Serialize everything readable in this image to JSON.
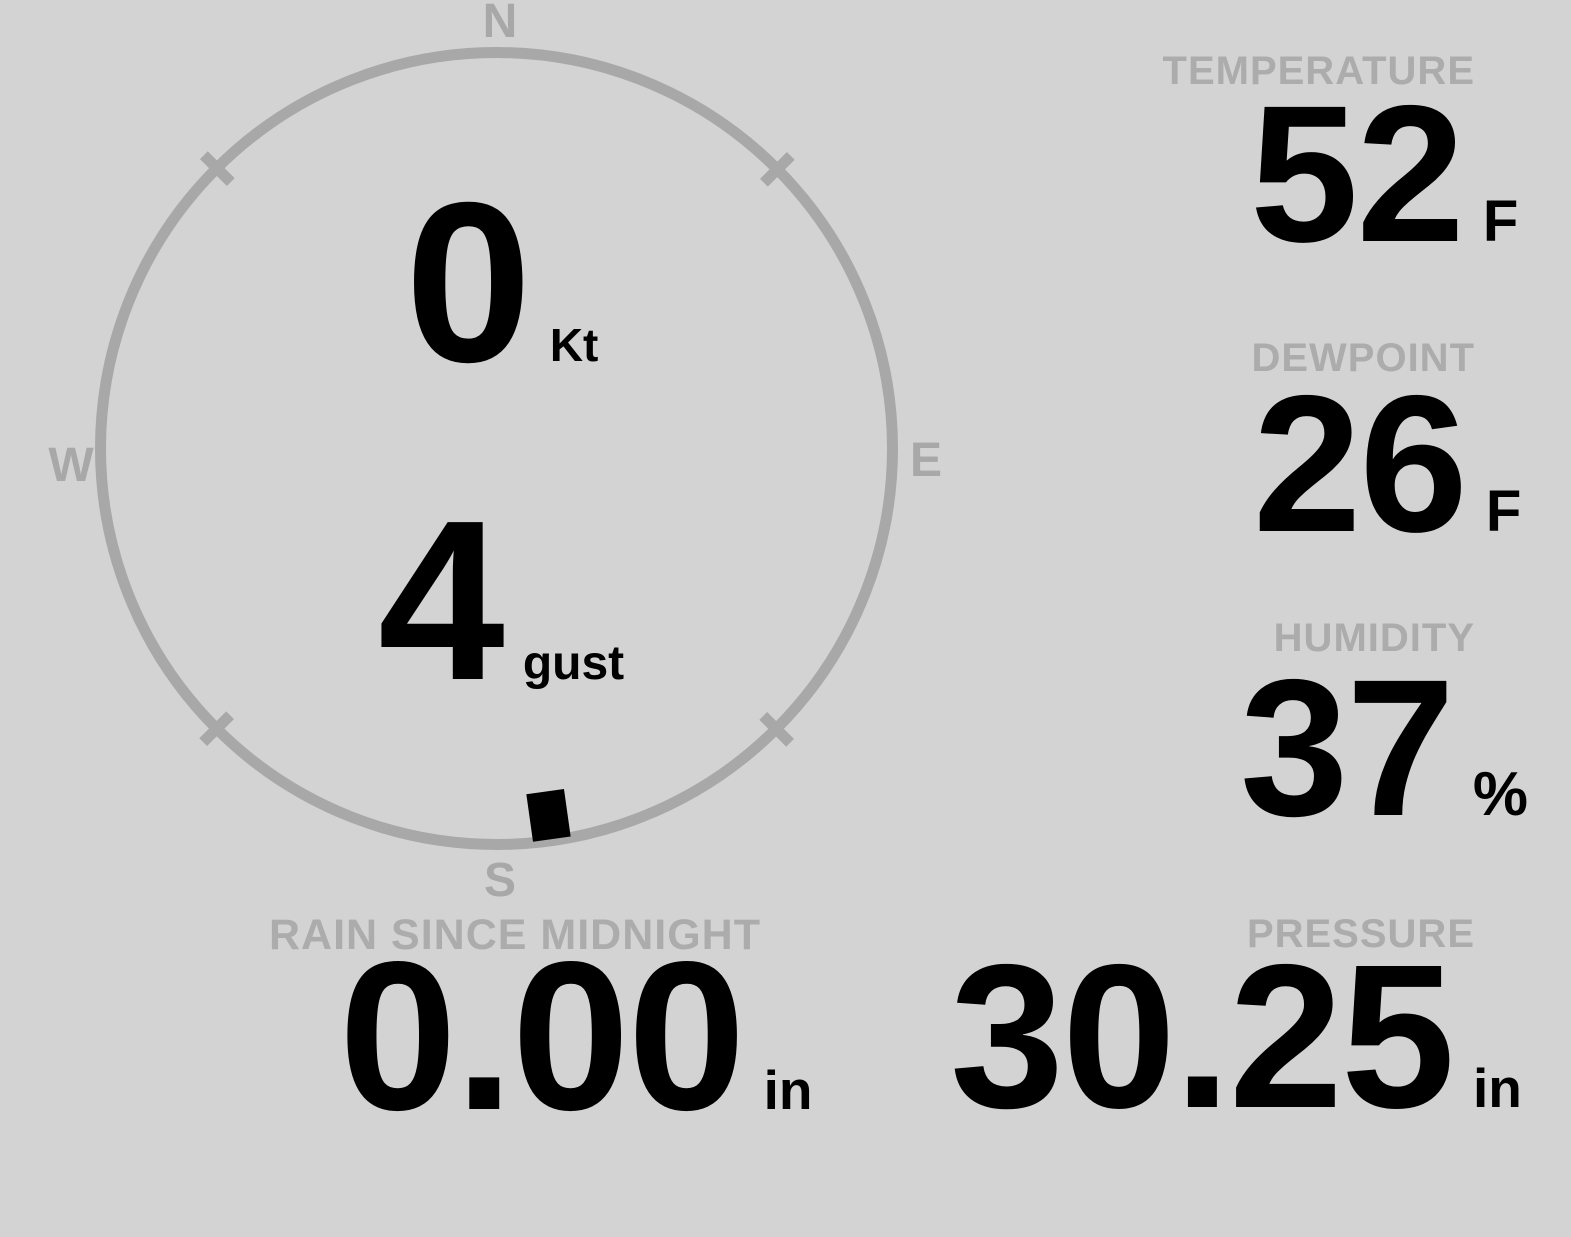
{
  "colors": {
    "background": "#d3d3d3",
    "ring_gray": "#a8a8a8",
    "label_gray": "#acacac",
    "value_black": "#000000",
    "direction_marker": "#000000"
  },
  "compass": {
    "cardinal_labels": {
      "north": "N",
      "east": "E",
      "south": "S",
      "west": "W"
    },
    "wind_speed": {
      "value": "0",
      "unit": "Kt"
    },
    "wind_gust": {
      "value": "4",
      "unit": "gust"
    },
    "wind_direction_deg": 172
  },
  "metrics": {
    "temperature": {
      "label": "TEMPERATURE",
      "value": "52",
      "unit": "F"
    },
    "dewpoint": {
      "label": "DEWPOINT",
      "value": "26",
      "unit": "F"
    },
    "humidity": {
      "label": "HUMIDITY",
      "value": "37",
      "unit": "%"
    },
    "rain_since_midnight": {
      "label": "RAIN SINCE MIDNIGHT",
      "value": "0.00",
      "unit": "in"
    },
    "pressure": {
      "label": "PRESSURE",
      "value": "30.25",
      "unit": "in"
    }
  }
}
